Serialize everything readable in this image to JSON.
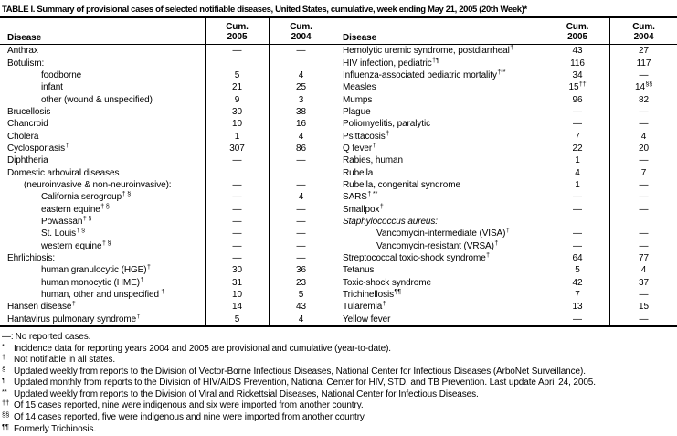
{
  "title": "TABLE I. Summary of provisional cases of selected notifiable diseases, United States, cumulative, week ending May 21, 2005 (20th Week)*",
  "colors": {
    "text": "#000000",
    "border": "#000000",
    "background": "#ffffff"
  },
  "table": {
    "header": {
      "disease": "Disease",
      "cum": "Cum.",
      "y2005": "2005",
      "y2004": "2004"
    },
    "rows_left": [
      {
        "label": "Anthrax",
        "indent": 0,
        "c2005": "—",
        "c2004": "—"
      },
      {
        "label": "Botulism:",
        "indent": 0,
        "c2005": "",
        "c2004": ""
      },
      {
        "label": "foodborne",
        "indent": 2,
        "c2005": "5",
        "c2004": "4"
      },
      {
        "label": "infant",
        "indent": 2,
        "c2005": "21",
        "c2004": "25"
      },
      {
        "label": "other (wound & unspecified)",
        "indent": 2,
        "c2005": "9",
        "c2004": "3"
      },
      {
        "label": "Brucellosis",
        "indent": 0,
        "c2005": "30",
        "c2004": "38"
      },
      {
        "label": "Chancroid",
        "indent": 0,
        "c2005": "10",
        "c2004": "16"
      },
      {
        "label": "Cholera",
        "indent": 0,
        "c2005": "1",
        "c2004": "4"
      },
      {
        "label": "Cyclosporiasis",
        "sup": "†",
        "indent": 0,
        "c2005": "307",
        "c2004": "86"
      },
      {
        "label": "Diphtheria",
        "indent": 0,
        "c2005": "—",
        "c2004": "—"
      },
      {
        "label": "Domestic arboviral diseases",
        "indent": 0,
        "c2005": "",
        "c2004": ""
      },
      {
        "label": "(neuroinvasive & non-neuroinvasive):",
        "indent": 1,
        "c2005": "—",
        "c2004": "—"
      },
      {
        "label": "California serogroup",
        "sup": "† §",
        "indent": 2,
        "c2005": "—",
        "c2004": "4"
      },
      {
        "label": "eastern equine",
        "sup": "† §",
        "indent": 2,
        "c2005": "—",
        "c2004": "—"
      },
      {
        "label": "Powassan",
        "sup": "† §",
        "indent": 2,
        "c2005": "—",
        "c2004": "—"
      },
      {
        "label": "St. Louis",
        "sup": "† §",
        "indent": 2,
        "c2005": "—",
        "c2004": "—"
      },
      {
        "label": "western equine",
        "sup": "† §",
        "indent": 2,
        "c2005": "—",
        "c2004": "—"
      },
      {
        "label": "Ehrlichiosis:",
        "indent": 0,
        "c2005": "—",
        "c2004": "—"
      },
      {
        "label": "human granulocytic (HGE)",
        "sup": "†",
        "indent": 2,
        "c2005": "30",
        "c2004": "36"
      },
      {
        "label": "human monocytic (HME)",
        "sup": "†",
        "indent": 2,
        "c2005": "31",
        "c2004": "23"
      },
      {
        "label": "human, other and unspecified",
        "sup": " †",
        "indent": 2,
        "c2005": "10",
        "c2004": "5"
      },
      {
        "label": "Hansen disease",
        "sup": "†",
        "indent": 0,
        "c2005": "14",
        "c2004": "43"
      },
      {
        "label": "Hantavirus pulmonary syndrome",
        "sup": "†",
        "indent": 0,
        "c2005": "5",
        "c2004": "4"
      }
    ],
    "rows_right": [
      {
        "label": "Hemolytic uremic syndrome, postdiarrheal",
        "sup": "†",
        "indent": 0,
        "c2005": "43",
        "c2004": "27"
      },
      {
        "label": "HIV infection, pediatric",
        "sup": "†¶",
        "indent": 0,
        "c2005": "116",
        "c2004": "117"
      },
      {
        "label": "Influenza-associated pediatric mortality",
        "sup": "†**",
        "indent": 0,
        "c2005": "34",
        "c2004": "—"
      },
      {
        "label": "Measles",
        "indent": 0,
        "c2005": "15",
        "c2005_sup": "††",
        "c2004": "14",
        "c2004_sup": "§§"
      },
      {
        "label": "Mumps",
        "indent": 0,
        "c2005": "96",
        "c2004": "82"
      },
      {
        "label": "Plague",
        "indent": 0,
        "c2005": "—",
        "c2004": "—"
      },
      {
        "label": "Poliomyelitis, paralytic",
        "indent": 0,
        "c2005": "—",
        "c2004": "—"
      },
      {
        "label": "Psittacosis",
        "sup": "†",
        "indent": 0,
        "c2005": "7",
        "c2004": "4"
      },
      {
        "label": "Q fever",
        "sup": "†",
        "indent": 0,
        "c2005": "22",
        "c2004": "20"
      },
      {
        "label": "Rabies, human",
        "indent": 0,
        "c2005": "1",
        "c2004": "—"
      },
      {
        "label": "Rubella",
        "indent": 0,
        "c2005": "4",
        "c2004": "7"
      },
      {
        "label": "Rubella, congenital syndrome",
        "indent": 0,
        "c2005": "1",
        "c2004": "—"
      },
      {
        "label": "SARS",
        "sup": "† **",
        "indent": 0,
        "c2005": "—",
        "c2004": "—"
      },
      {
        "label": "Smallpox",
        "sup": "†",
        "indent": 0,
        "c2005": "—",
        "c2004": "—"
      },
      {
        "label": "Staphylococcus aureus:",
        "italic": true,
        "indent": 0,
        "c2005": "",
        "c2004": ""
      },
      {
        "label": "Vancomycin-intermediate (VISA)",
        "sup": "†",
        "indent": 2,
        "c2005": "—",
        "c2004": "—"
      },
      {
        "label": "Vancomycin-resistant (VRSA)",
        "sup": "†",
        "indent": 2,
        "c2005": "—",
        "c2004": "—"
      },
      {
        "label": "Streptococcal toxic-shock syndrome",
        "sup": "†",
        "indent": 0,
        "c2005": "64",
        "c2004": "77"
      },
      {
        "label": "Tetanus",
        "indent": 0,
        "c2005": "5",
        "c2004": "4"
      },
      {
        "label": "Toxic-shock syndrome",
        "indent": 0,
        "c2005": "42",
        "c2004": "37"
      },
      {
        "label": "Trichinellosis",
        "sup": "¶¶",
        "indent": 0,
        "c2005": "7",
        "c2004": "—"
      },
      {
        "label": "Tularemia",
        "sup": "†",
        "indent": 0,
        "c2005": "13",
        "c2004": "15"
      },
      {
        "label": "Yellow fever",
        "indent": 0,
        "c2005": "—",
        "c2004": "—"
      }
    ]
  },
  "footnotes": [
    {
      "marker": "—:",
      "raised": false,
      "text": "No reported cases."
    },
    {
      "marker": "*",
      "raised": true,
      "text": "Incidence data for reporting years 2004 and 2005 are provisional and cumulative (year-to-date)."
    },
    {
      "marker": "†",
      "raised": true,
      "text": "Not notifiable in all states."
    },
    {
      "marker": "§",
      "raised": true,
      "text": "Updated weekly from reports to the Division of Vector-Borne Infectious Diseases, National Center for Infectious Diseases (ArboNet Surveillance)."
    },
    {
      "marker": "¶",
      "raised": true,
      "text": "Updated monthly from reports to the Division of HIV/AIDS Prevention, National Center for HIV, STD, and TB Prevention. Last update April 24, 2005."
    },
    {
      "marker": "**",
      "raised": true,
      "text": "Updated weekly from reports to the Division of Viral and Rickettsial Diseases, National Center for Infectious Diseases."
    },
    {
      "marker": "††",
      "raised": true,
      "text": "Of 15 cases reported, nine were indigenous and six were imported from another country."
    },
    {
      "marker": "§§",
      "raised": true,
      "text": "Of 14 cases reported, five were indigenous and nine were imported from another country."
    },
    {
      "marker": "¶¶",
      "raised": true,
      "text": "Formerly Trichinosis."
    }
  ]
}
